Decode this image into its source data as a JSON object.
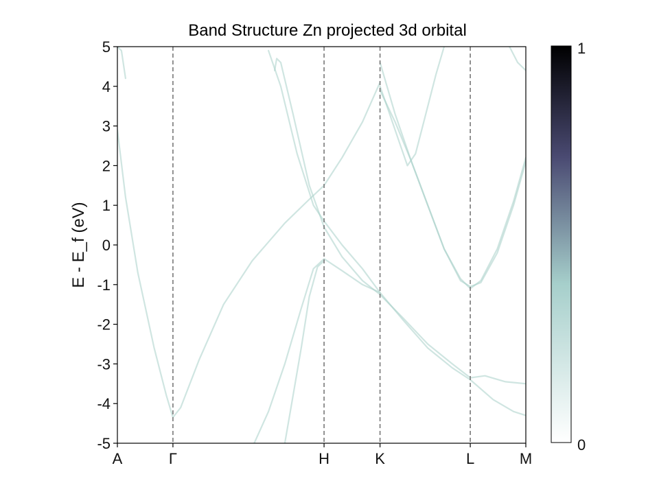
{
  "chart_data": {
    "type": "line",
    "title": "Band Structure Zn projected 3d orbital",
    "ylabel": "E - E_f (eV)",
    "xlabel": "",
    "ylim": [
      -5,
      5
    ],
    "yticks": [
      5,
      4,
      3,
      2,
      1,
      0,
      -1,
      -2,
      -3,
      -4,
      -5
    ],
    "ytick_labels": [
      "5",
      "4",
      "3",
      "2",
      "1",
      "0",
      "-1",
      "-2",
      "-3",
      "-4",
      "-5"
    ],
    "kpath": [
      {
        "label": "A",
        "x": 0.0
      },
      {
        "label": "Γ",
        "x": 0.136
      },
      {
        "label": "H",
        "x": 0.506
      },
      {
        "label": "K",
        "x": 0.643
      },
      {
        "label": "L",
        "x": 0.864
      },
      {
        "label": "M",
        "x": 1.0
      }
    ],
    "grid": false,
    "vlines_style": "dashed",
    "colorbar": {
      "min_label": "0",
      "max_label": "1",
      "colors": [
        "#ffffff",
        "#a6cfcb",
        "#4a4a72",
        "#000000"
      ]
    },
    "band_color": "#a8d0c9",
    "series": [
      {
        "points": [
          [
            0.0,
            2.9
          ],
          [
            0.02,
            1.2
          ],
          [
            0.05,
            -0.7
          ],
          [
            0.09,
            -2.6
          ],
          [
            0.12,
            -3.8
          ],
          [
            0.136,
            -4.35
          ],
          [
            0.155,
            -4.1
          ],
          [
            0.2,
            -2.9
          ],
          [
            0.26,
            -1.5
          ],
          [
            0.33,
            -0.4
          ],
          [
            0.41,
            0.55
          ],
          [
            0.47,
            1.15
          ],
          [
            0.506,
            1.5
          ],
          [
            0.55,
            2.2
          ],
          [
            0.6,
            3.1
          ],
          [
            0.643,
            4.1
          ]
        ]
      },
      {
        "points": [
          [
            0.0,
            5.0
          ],
          [
            0.01,
            4.9
          ],
          [
            0.02,
            4.2
          ]
        ]
      },
      {
        "points": [
          [
            0.385,
            4.4
          ],
          [
            0.39,
            4.7
          ],
          [
            0.4,
            4.6
          ],
          [
            0.43,
            3.3
          ],
          [
            0.47,
            1.5
          ],
          [
            0.506,
            0.45
          ],
          [
            0.55,
            -0.3
          ],
          [
            0.6,
            -0.9
          ],
          [
            0.643,
            -1.25
          ],
          [
            0.7,
            -1.85
          ],
          [
            0.76,
            -2.5
          ],
          [
            0.82,
            -3.0
          ],
          [
            0.864,
            -3.35
          ],
          [
            0.9,
            -3.3
          ],
          [
            0.95,
            -3.45
          ],
          [
            1.0,
            -3.5
          ]
        ]
      },
      {
        "points": [
          [
            0.37,
            4.9
          ],
          [
            0.4,
            4.0
          ],
          [
            0.44,
            2.3
          ],
          [
            0.48,
            1.0
          ],
          [
            0.506,
            0.6
          ],
          [
            0.55,
            0.0
          ],
          [
            0.6,
            -0.6
          ],
          [
            0.643,
            -1.2
          ],
          [
            0.7,
            -1.9
          ],
          [
            0.76,
            -2.6
          ],
          [
            0.82,
            -3.1
          ],
          [
            0.864,
            -3.4
          ],
          [
            0.92,
            -3.9
          ],
          [
            0.97,
            -4.2
          ],
          [
            1.0,
            -4.3
          ]
        ]
      },
      {
        "points": [
          [
            0.335,
            -5.0
          ],
          [
            0.37,
            -4.2
          ],
          [
            0.41,
            -3.0
          ],
          [
            0.45,
            -1.6
          ],
          [
            0.48,
            -0.6
          ],
          [
            0.506,
            -0.35
          ],
          [
            0.55,
            -0.65
          ],
          [
            0.6,
            -1.0
          ],
          [
            0.643,
            -1.2
          ]
        ]
      },
      {
        "points": [
          [
            0.41,
            -5.0
          ],
          [
            0.43,
            -3.8
          ],
          [
            0.45,
            -2.6
          ],
          [
            0.47,
            -1.3
          ],
          [
            0.49,
            -0.55
          ],
          [
            0.506,
            -0.4
          ]
        ]
      },
      {
        "points": [
          [
            0.643,
            4.6
          ],
          [
            0.68,
            3.3
          ],
          [
            0.72,
            2.1
          ],
          [
            0.76,
            1.0
          ],
          [
            0.8,
            -0.1
          ],
          [
            0.84,
            -0.9
          ],
          [
            0.864,
            -1.05
          ],
          [
            0.89,
            -0.95
          ],
          [
            0.93,
            -0.2
          ],
          [
            0.97,
            1.0
          ],
          [
            1.0,
            2.1
          ]
        ]
      },
      {
        "points": [
          [
            0.643,
            3.9
          ],
          [
            0.68,
            3.1
          ],
          [
            0.72,
            2.1
          ],
          [
            0.76,
            1.0
          ],
          [
            0.8,
            -0.1
          ],
          [
            0.84,
            -0.85
          ],
          [
            0.864,
            -1.1
          ],
          [
            0.89,
            -0.9
          ],
          [
            0.93,
            -0.1
          ],
          [
            0.97,
            1.1
          ],
          [
            1.0,
            2.2
          ]
        ]
      },
      {
        "points": [
          [
            0.643,
            4.0
          ],
          [
            0.66,
            3.5
          ],
          [
            0.69,
            2.6
          ],
          [
            0.71,
            2.0
          ],
          [
            0.73,
            2.3
          ],
          [
            0.75,
            3.1
          ],
          [
            0.78,
            4.3
          ],
          [
            0.8,
            5.0
          ]
        ]
      },
      {
        "points": [
          [
            0.96,
            5.0
          ],
          [
            0.98,
            4.6
          ],
          [
            1.0,
            4.4
          ]
        ]
      }
    ]
  }
}
